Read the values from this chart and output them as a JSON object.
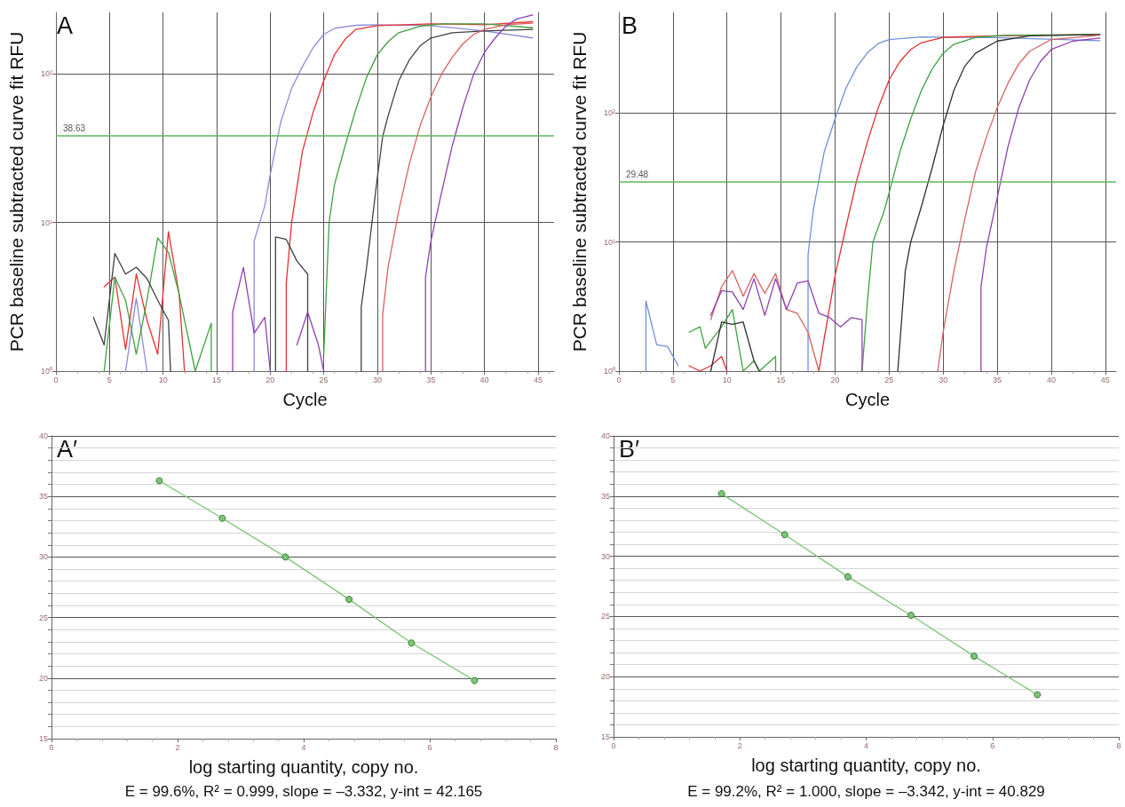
{
  "chart_data": [
    {
      "type": "line",
      "xlabel": "Cycle",
      "ylabel": "PCR baseline subtracted curve fit RFU",
      "annotations": [
        "A"
      ],
      "log": "y",
      "grid": true,
      "marker": "none",
      "xlim": [
        0,
        46.5
      ],
      "xticks": [
        0,
        5,
        10,
        15,
        20,
        25,
        30,
        35,
        40,
        45
      ],
      "ylim": [
        1,
        260
      ],
      "yticks": [
        {
          "value": 1,
          "label": "10⁰"
        },
        {
          "value": 10,
          "label": "10¹"
        },
        {
          "value": 100,
          "label": "10²"
        }
      ],
      "ref_lines": [
        {
          "axis": "y",
          "value": 38.63,
          "label": "38.63",
          "color": "#5cb85c"
        }
      ],
      "series": [
        {
          "color": "#8b8bdc",
          "x": [
            6.5,
            7.5,
            8.5,
            9,
            18.5,
            18.5,
            19.5,
            20,
            21,
            22,
            23,
            24,
            25,
            26,
            28,
            30,
            35,
            40,
            44.5
          ],
          "values": [
            1,
            3.1,
            1,
            null,
            1,
            7.5,
            13,
            21,
            48,
            80,
            112,
            150,
            185,
            203,
            213,
            215,
            212,
            195,
            175
          ]
        },
        {
          "color": "#e83030",
          "x": [
            4.5,
            5.5,
            6.5,
            7.5,
            8.5,
            9.5,
            10.5,
            11.5,
            12,
            13,
            21.5,
            21.5,
            22,
            23,
            24,
            25,
            26,
            27,
            28,
            30,
            35,
            40,
            44.5
          ],
          "values": [
            3.7,
            4.3,
            1.4,
            4.5,
            2.2,
            1.3,
            8.7,
            3.3,
            1,
            null,
            1,
            3.9,
            10,
            30,
            55,
            90,
            135,
            172,
            200,
            212,
            218,
            215,
            225
          ]
        },
        {
          "color": "#40a040",
          "x": [
            4.5,
            5.5,
            6.5,
            7.5,
            8.5,
            9.5,
            10.5,
            11.5,
            13,
            14.5,
            14.5,
            20,
            25,
            25.5,
            26,
            27,
            28,
            29,
            30,
            31,
            32,
            34,
            36,
            40,
            44.5
          ],
          "values": [
            1,
            4.3,
            3,
            1.3,
            3,
            7.9,
            6.3,
            3.3,
            1,
            2.1,
            1,
            null,
            1.3,
            10,
            18,
            33,
            58,
            95,
            135,
            165,
            190,
            210,
            218,
            218,
            205
          ]
        },
        {
          "color": "#404040",
          "x": [
            3.5,
            4.5,
            5.5,
            6.5,
            7.5,
            8.5,
            9.5,
            10.5,
            10.7,
            15,
            20.5,
            20.5,
            21.5,
            22.5,
            23.5,
            23.5,
            26,
            28.5,
            28.5,
            29,
            30,
            30.5,
            31,
            32,
            33,
            34,
            35,
            37,
            40,
            44.5
          ],
          "values": [
            2.3,
            1.5,
            6.2,
            4.5,
            5,
            4.2,
            3,
            2.2,
            1,
            null,
            1,
            8,
            7.7,
            5.5,
            4.5,
            1,
            null,
            1,
            2.7,
            5,
            20,
            38,
            52,
            90,
            125,
            155,
            175,
            190,
            195,
            200
          ]
        },
        {
          "color": "#d86060",
          "x": [
            30.5,
            30.5,
            31,
            32,
            33,
            34,
            35,
            36,
            37,
            38,
            39,
            40,
            42,
            44.5
          ],
          "values": [
            1,
            2.4,
            5,
            12,
            25,
            45,
            70,
            100,
            130,
            160,
            185,
            200,
            215,
            220
          ]
        },
        {
          "color": "#9040b0",
          "x": [
            16.5,
            16.5,
            17.5,
            18.5,
            19.5,
            20,
            21,
            22.5,
            23.5,
            24.5,
            25,
            30,
            34.5,
            34.5,
            35,
            36,
            37,
            38,
            39,
            40,
            41,
            42,
            43,
            44.5
          ],
          "values": [
            1,
            2.5,
            5,
            1.8,
            2.3,
            1,
            null,
            1.5,
            2.5,
            1.5,
            1,
            null,
            1,
            4.3,
            7.5,
            16,
            33,
            60,
            100,
            140,
            175,
            210,
            235,
            250
          ]
        }
      ]
    },
    {
      "type": "line",
      "xlabel": "Cycle",
      "ylabel": "PCR baseline subtracted curve fit RFU",
      "annotations": [
        "B"
      ],
      "log": "y",
      "grid": true,
      "marker": "none",
      "xlim": [
        0,
        46
      ],
      "xticks": [
        0,
        5,
        10,
        15,
        20,
        25,
        30,
        35,
        40,
        45
      ],
      "ylim": [
        1,
        600
      ],
      "yticks": [
        {
          "value": 1,
          "label": "10⁰"
        },
        {
          "value": 10,
          "label": "10¹"
        },
        {
          "value": 100,
          "label": "10²"
        }
      ],
      "ref_lines": [
        {
          "axis": "y",
          "value": 29.48,
          "label": "29.48",
          "color": "#5cb85c"
        }
      ],
      "series": [
        {
          "color": "#6f8fdc",
          "x": [
            2.5,
            2.5,
            3.5,
            4.5,
            5.5,
            10,
            17.5,
            17.5,
            18,
            19,
            20,
            21,
            22,
            23,
            24,
            25,
            28,
            35,
            44.5
          ],
          "values": [
            1,
            3.5,
            1.6,
            1.55,
            1.1,
            null,
            1,
            8,
            18,
            50,
            90,
            155,
            226,
            293,
            345,
            370,
            388,
            383,
            362
          ]
        },
        {
          "color": "#e03030",
          "x": [
            6.5,
            7.5,
            8.5,
            9.5,
            10,
            15,
            18.5,
            19,
            20,
            21,
            22,
            23,
            24,
            25,
            26,
            27,
            28,
            30,
            35,
            44.5
          ],
          "values": [
            1.1,
            1,
            1.1,
            1.3,
            1,
            null,
            1,
            1.8,
            5.5,
            13,
            30,
            60,
            110,
            180,
            250,
            310,
            350,
            385,
            395,
            405
          ]
        },
        {
          "color": "#40a040",
          "x": [
            6.5,
            7.5,
            8,
            9.5,
            10.5,
            11.5,
            12.5,
            13,
            14.5,
            14.5,
            18,
            22.5,
            23,
            23.5,
            24.5,
            25,
            26,
            27,
            28,
            29,
            30,
            31,
            33,
            36,
            44.5
          ],
          "values": [
            2,
            2.2,
            1.5,
            2.2,
            3,
            1,
            1.2,
            1,
            1.3,
            1,
            null,
            1,
            3.5,
            10,
            17,
            24,
            50,
            90,
            150,
            220,
            290,
            340,
            385,
            400,
            405
          ]
        },
        {
          "color": "#303030",
          "x": [
            8.5,
            9.5,
            10.5,
            11.5,
            12.5,
            13,
            20,
            25.8,
            26.5,
            27,
            28,
            29,
            30,
            31,
            32,
            33,
            35,
            38,
            44.5
          ],
          "values": [
            1,
            2.4,
            2.3,
            2.4,
            1.2,
            1,
            null,
            1,
            6,
            10,
            19,
            38,
            80,
            150,
            230,
            290,
            360,
            395,
            405
          ]
        },
        {
          "color": "#d86060",
          "x": [
            8.5,
            9.5,
            10.5,
            11.5,
            12.5,
            13.5,
            14.5,
            15.5,
            16.5,
            17.5,
            18.5,
            24,
            29.5,
            30,
            31,
            32,
            33,
            34,
            35,
            36,
            37,
            38,
            40,
            44.5
          ],
          "values": [
            2.5,
            4.5,
            6,
            3.8,
            5.7,
            4,
            5.7,
            3,
            2.8,
            2,
            1,
            null,
            1,
            2,
            6,
            15,
            35,
            65,
            110,
            170,
            240,
            300,
            370,
            400
          ]
        },
        {
          "color": "#9040b0",
          "x": [
            8.5,
            9.5,
            10.5,
            11.5,
            12.5,
            13.5,
            14.5,
            15.5,
            16.5,
            17.5,
            18.5,
            19.5,
            20.5,
            21.5,
            22.5,
            22.5,
            28,
            33.5,
            33.5,
            34,
            35,
            36,
            37,
            38,
            39,
            40,
            42,
            44.5
          ],
          "values": [
            2.7,
            4.2,
            4.1,
            3,
            5.2,
            2.7,
            5.2,
            3,
            4.8,
            5,
            2.8,
            2.6,
            2.2,
            2.6,
            2.5,
            1,
            null,
            1,
            4.5,
            9,
            22,
            55,
            110,
            180,
            250,
            310,
            360,
            380
          ]
        }
      ]
    },
    {
      "type": "line",
      "xlabel": "log starting quantity, copy no.",
      "annotations": [
        "A′",
        "E = 99.6%, R² = 0.999, slope = –3.332, y-int = 42.165"
      ],
      "grid": "y",
      "marker": "circle",
      "xlim": [
        0,
        8
      ],
      "xticks": [
        0,
        2,
        4,
        6,
        8
      ],
      "ylim": [
        15,
        40
      ],
      "yticks": [
        15,
        20,
        25,
        30,
        35,
        40
      ],
      "series": [
        {
          "color": "#7cc576",
          "x": [
            1.71,
            2.71,
            3.71,
            4.72,
            5.71,
            6.71
          ],
          "values": [
            36.3,
            33.2,
            30.0,
            26.5,
            22.9,
            19.8
          ]
        }
      ]
    },
    {
      "type": "line",
      "xlabel": "log starting quantity, copy no.",
      "annotations": [
        "B′",
        "E = 99.2%, R² = 1.000, slope = –3.342, y-int = 40.829"
      ],
      "grid": "y",
      "marker": "circle",
      "xlim": [
        0,
        8
      ],
      "xticks": [
        0,
        2,
        4,
        6,
        8
      ],
      "ylim": [
        15,
        40
      ],
      "yticks": [
        15,
        20,
        25,
        30,
        35,
        40
      ],
      "series": [
        {
          "color": "#7cc576",
          "x": [
            1.71,
            2.71,
            3.71,
            4.71,
            5.71,
            6.71
          ],
          "values": [
            35.2,
            31.8,
            28.3,
            25.1,
            21.7,
            18.5
          ]
        }
      ]
    }
  ]
}
